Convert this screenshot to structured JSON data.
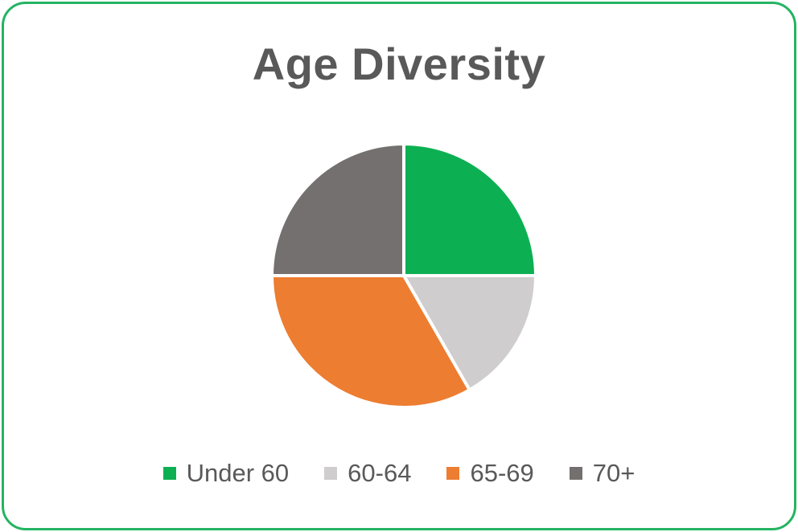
{
  "card": {
    "border_color": "#24B462",
    "background": "#FFFFFF"
  },
  "text_color": "#595959",
  "chart_data": {
    "type": "pie",
    "title": "Age Diversity",
    "legend_position": "bottom",
    "start_angle_deg": 0,
    "direction": "clockwise",
    "slice_separator_color": "#FFFFFF",
    "slices": [
      {
        "label": "Under 60",
        "value": 25,
        "color": "#0CB052"
      },
      {
        "label": "60-64",
        "value": 16.7,
        "color": "#CFCDCD"
      },
      {
        "label": "65-69",
        "value": 33.3,
        "color": "#ED7D31"
      },
      {
        "label": "70+",
        "value": 25,
        "color": "#757070"
      }
    ]
  }
}
